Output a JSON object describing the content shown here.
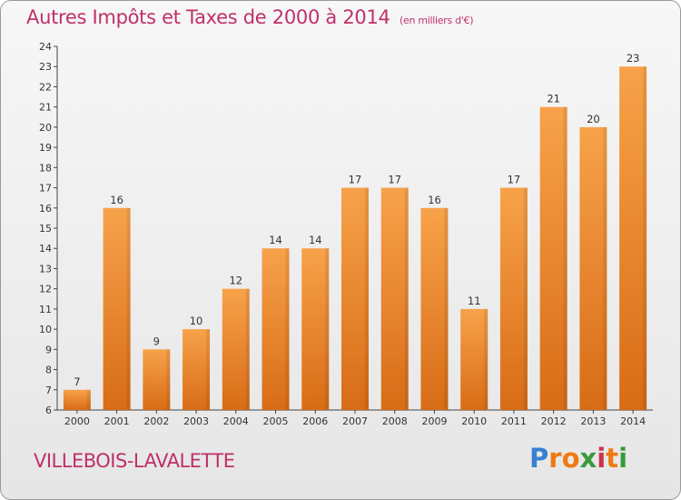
{
  "chart_data": {
    "type": "bar",
    "title": "Autres Impôts et Taxes de 2000 à 2014",
    "subtitle": "(en milliers d'€)",
    "categories": [
      "2000",
      "2001",
      "2002",
      "2003",
      "2004",
      "2005",
      "2006",
      "2007",
      "2008",
      "2009",
      "2010",
      "2011",
      "2012",
      "2013",
      "2014"
    ],
    "values": [
      7,
      16,
      9,
      10,
      12,
      14,
      14,
      17,
      17,
      16,
      11,
      17,
      21,
      20,
      23
    ],
    "ylim": [
      6,
      24
    ],
    "yticks": [
      6,
      7,
      8,
      9,
      10,
      11,
      12,
      13,
      14,
      15,
      16,
      17,
      18,
      19,
      20,
      21,
      22,
      23,
      24
    ],
    "grid": false,
    "bar_color": "#f08c30"
  },
  "footer": {
    "place": "VILLEBOIS-LAVALETTE",
    "logo_letters": [
      "P",
      "r",
      "o",
      "x",
      "i",
      "t",
      "i"
    ],
    "logo_colors": [
      "#3a7fd0",
      "#f07a10",
      "#f07a10",
      "#3a9a3a",
      "#d03050",
      "#f07a10",
      "#3a9a3a"
    ]
  }
}
